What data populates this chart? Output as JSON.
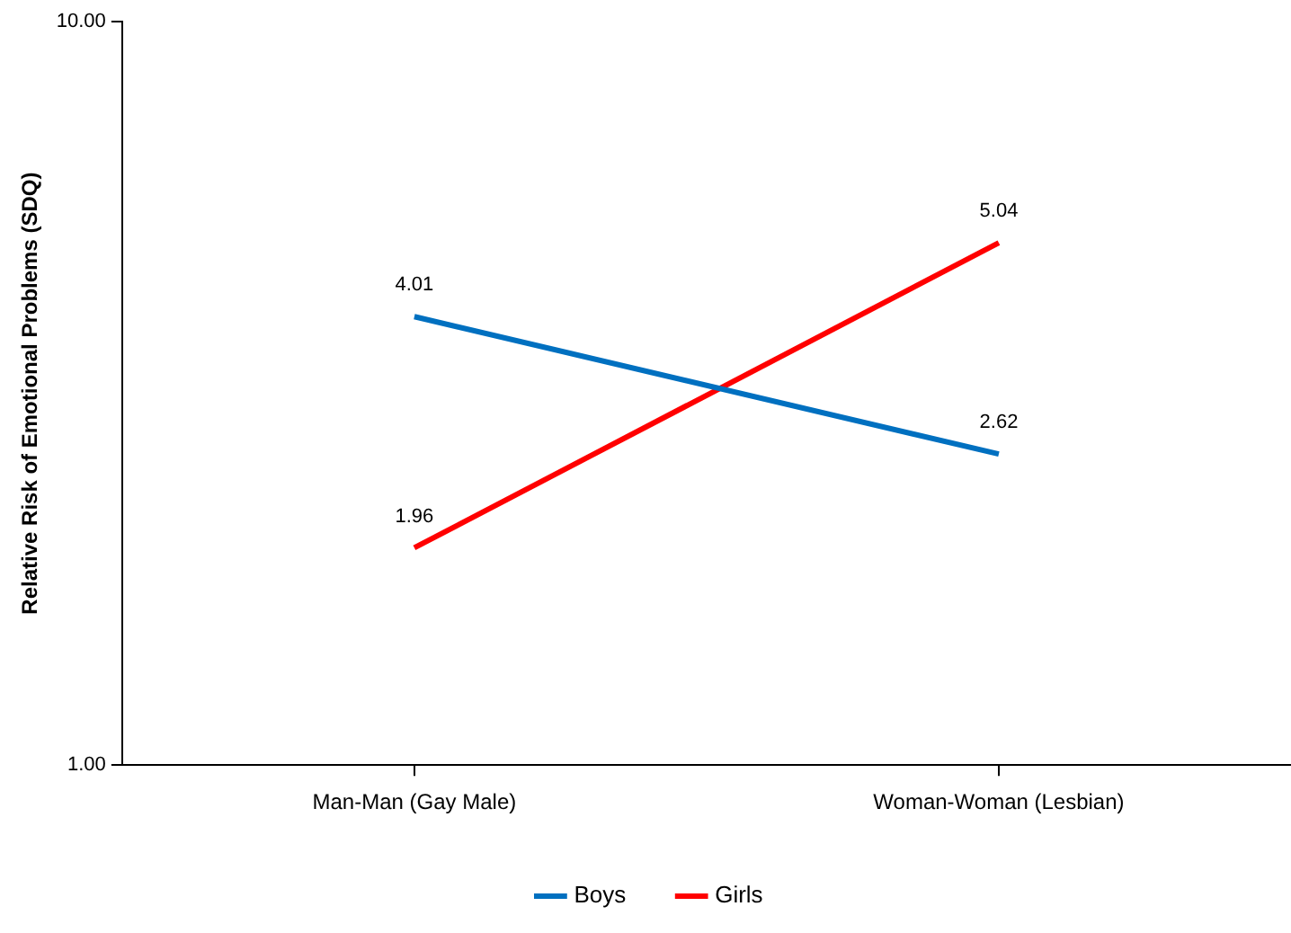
{
  "chart_data": {
    "type": "line",
    "ylabel": "Relative Risk of Emotional Problems (SDQ)",
    "categories": [
      "Man-Man (Gay Male)",
      "Woman-Woman (Lesbian)"
    ],
    "series": [
      {
        "name": "Boys",
        "color": "#0070c0",
        "values": [
          4.01,
          2.62
        ]
      },
      {
        "name": "Girls",
        "color": "#ff0000",
        "values": [
          1.96,
          5.04
        ]
      }
    ],
    "log": "y",
    "ylim": [
      1,
      10
    ],
    "yticks": [
      {
        "value": 1,
        "label": "1.00"
      },
      {
        "value": 10,
        "label": "10.00"
      }
    ],
    "grid": false,
    "legend": "bottom",
    "marker": "none",
    "line_style": "solid",
    "data_labels": true
  }
}
